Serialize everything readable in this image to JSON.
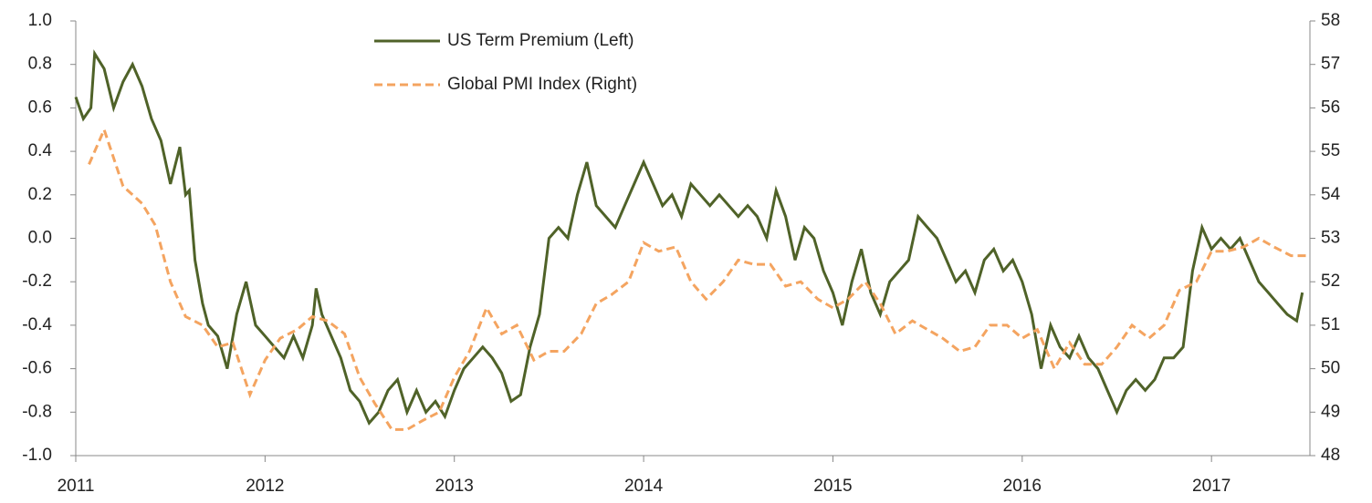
{
  "chart_data": {
    "type": "line",
    "xlim": [
      2011,
      2017.52
    ],
    "xticks": [
      2011,
      2012,
      2013,
      2014,
      2015,
      2016,
      2017
    ],
    "ylim": [
      -1.0,
      1.0
    ],
    "yticks": [
      {
        "value": -1.0,
        "label": "-1.0"
      },
      {
        "value": -0.8,
        "label": "-0.8"
      },
      {
        "value": -0.6,
        "label": "-0.6"
      },
      {
        "value": -0.4,
        "label": "-0.4"
      },
      {
        "value": -0.2,
        "label": "-0.2"
      },
      {
        "value": 0.0,
        "label": "0.0"
      },
      {
        "value": 0.2,
        "label": "0.2"
      },
      {
        "value": 0.4,
        "label": "0.4"
      },
      {
        "value": 0.6,
        "label": "0.6"
      },
      {
        "value": 0.8,
        "label": "0.8"
      },
      {
        "value": 1.0,
        "label": "1.0"
      }
    ],
    "y2lim": [
      48,
      58
    ],
    "y2ticks": [
      48,
      49,
      50,
      51,
      52,
      53,
      54,
      55,
      56,
      57,
      58
    ],
    "legend": "top",
    "series": [
      {
        "name": "US Term Premium (Left)",
        "color": "#4f6228",
        "dash": "solid",
        "axis": "y",
        "x": [
          2011.0,
          2011.04,
          2011.08,
          2011.1,
          2011.15,
          2011.2,
          2011.25,
          2011.3,
          2011.35,
          2011.4,
          2011.45,
          2011.5,
          2011.55,
          2011.58,
          2011.6,
          2011.63,
          2011.67,
          2011.7,
          2011.75,
          2011.8,
          2011.85,
          2011.9,
          2011.95,
          2012.0,
          2012.05,
          2012.1,
          2012.15,
          2012.2,
          2012.25,
          2012.27,
          2012.3,
          2012.35,
          2012.4,
          2012.45,
          2012.5,
          2012.55,
          2012.6,
          2012.65,
          2012.7,
          2012.75,
          2012.8,
          2012.85,
          2012.9,
          2012.95,
          2013.0,
          2013.05,
          2013.1,
          2013.15,
          2013.2,
          2013.25,
          2013.3,
          2013.35,
          2013.4,
          2013.45,
          2013.5,
          2013.55,
          2013.6,
          2013.65,
          2013.7,
          2013.75,
          2013.8,
          2013.85,
          2013.9,
          2013.95,
          2014.0,
          2014.05,
          2014.1,
          2014.15,
          2014.2,
          2014.25,
          2014.3,
          2014.35,
          2014.4,
          2014.45,
          2014.5,
          2014.55,
          2014.6,
          2014.65,
          2014.7,
          2014.75,
          2014.8,
          2014.85,
          2014.9,
          2014.95,
          2015.0,
          2015.05,
          2015.1,
          2015.15,
          2015.2,
          2015.25,
          2015.3,
          2015.35,
          2015.4,
          2015.45,
          2015.5,
          2015.55,
          2015.6,
          2015.65,
          2015.7,
          2015.75,
          2015.8,
          2015.85,
          2015.9,
          2015.95,
          2016.0,
          2016.05,
          2016.1,
          2016.15,
          2016.2,
          2016.25,
          2016.3,
          2016.35,
          2016.4,
          2016.45,
          2016.5,
          2016.55,
          2016.6,
          2016.65,
          2016.7,
          2016.75,
          2016.8,
          2016.85,
          2016.9,
          2016.95,
          2017.0,
          2017.05,
          2017.1,
          2017.15,
          2017.2,
          2017.25,
          2017.3,
          2017.35,
          2017.4,
          2017.45,
          2017.48
        ],
        "values": [
          0.65,
          0.55,
          0.6,
          0.85,
          0.78,
          0.6,
          0.72,
          0.8,
          0.7,
          0.55,
          0.45,
          0.25,
          0.42,
          0.2,
          0.22,
          -0.1,
          -0.3,
          -0.4,
          -0.45,
          -0.6,
          -0.35,
          -0.2,
          -0.4,
          -0.45,
          -0.5,
          -0.55,
          -0.45,
          -0.55,
          -0.4,
          -0.23,
          -0.35,
          -0.45,
          -0.55,
          -0.7,
          -0.75,
          -0.85,
          -0.8,
          -0.7,
          -0.65,
          -0.8,
          -0.7,
          -0.8,
          -0.75,
          -0.82,
          -0.7,
          -0.6,
          -0.55,
          -0.5,
          -0.55,
          -0.62,
          -0.75,
          -0.72,
          -0.5,
          -0.35,
          0.0,
          0.05,
          0.0,
          0.2,
          0.35,
          0.15,
          0.1,
          0.05,
          0.15,
          0.25,
          0.35,
          0.25,
          0.15,
          0.2,
          0.1,
          0.25,
          0.2,
          0.15,
          0.2,
          0.15,
          0.1,
          0.15,
          0.1,
          0.0,
          0.22,
          0.1,
          -0.1,
          0.05,
          0.0,
          -0.15,
          -0.25,
          -0.4,
          -0.2,
          -0.05,
          -0.25,
          -0.35,
          -0.2,
          -0.15,
          -0.1,
          0.1,
          0.05,
          0.0,
          -0.1,
          -0.2,
          -0.15,
          -0.25,
          -0.1,
          -0.05,
          -0.15,
          -0.1,
          -0.2,
          -0.35,
          -0.6,
          -0.4,
          -0.5,
          -0.55,
          -0.45,
          -0.55,
          -0.6,
          -0.7,
          -0.8,
          -0.7,
          -0.65,
          -0.7,
          -0.65,
          -0.55,
          -0.55,
          -0.5,
          -0.15,
          0.05,
          -0.05,
          0.0,
          -0.05,
          0.0,
          -0.1,
          -0.2,
          -0.25,
          -0.3,
          -0.35,
          -0.38,
          -0.25
        ]
      },
      {
        "name": "Global PMI Index (Right)",
        "color": "#f4a460",
        "dash": "dashed",
        "axis": "y2",
        "x": [
          2011.07,
          2011.15,
          2011.25,
          2011.35,
          2011.42,
          2011.5,
          2011.58,
          2011.67,
          2011.75,
          2011.83,
          2011.92,
          2012.0,
          2012.08,
          2012.17,
          2012.25,
          2012.33,
          2012.42,
          2012.5,
          2012.58,
          2012.67,
          2012.75,
          2012.83,
          2012.92,
          2013.0,
          2013.08,
          2013.17,
          2013.25,
          2013.33,
          2013.42,
          2013.5,
          2013.58,
          2013.67,
          2013.75,
          2013.83,
          2013.92,
          2014.0,
          2014.08,
          2014.17,
          2014.25,
          2014.33,
          2014.42,
          2014.5,
          2014.58,
          2014.67,
          2014.75,
          2014.83,
          2014.92,
          2015.0,
          2015.08,
          2015.17,
          2015.25,
          2015.33,
          2015.42,
          2015.5,
          2015.58,
          2015.67,
          2015.75,
          2015.83,
          2015.92,
          2016.0,
          2016.08,
          2016.17,
          2016.25,
          2016.33,
          2016.42,
          2016.5,
          2016.58,
          2016.67,
          2016.75,
          2016.83,
          2016.92,
          2017.0,
          2017.08,
          2017.17,
          2017.25,
          2017.33,
          2017.42,
          2017.5
        ],
        "values": [
          54.7,
          55.5,
          54.2,
          53.8,
          53.3,
          52.0,
          51.2,
          51.0,
          50.5,
          50.6,
          49.4,
          50.2,
          50.7,
          50.9,
          51.2,
          51.1,
          50.8,
          49.8,
          49.2,
          48.6,
          48.6,
          48.8,
          49.0,
          49.8,
          50.4,
          51.4,
          50.8,
          51.0,
          50.2,
          50.4,
          50.4,
          50.8,
          51.5,
          51.7,
          52.0,
          52.9,
          52.7,
          52.8,
          52.0,
          51.6,
          52.0,
          52.5,
          52.4,
          52.4,
          51.9,
          52.0,
          51.6,
          51.4,
          51.6,
          52.0,
          51.5,
          50.8,
          51.1,
          50.9,
          50.7,
          50.4,
          50.5,
          51.0,
          51.0,
          50.7,
          50.9,
          50.0,
          50.6,
          50.1,
          50.1,
          50.5,
          51.0,
          50.7,
          51.0,
          51.8,
          52.0,
          52.7,
          52.7,
          52.8,
          53.0,
          52.8,
          52.6,
          52.6
        ]
      }
    ]
  }
}
